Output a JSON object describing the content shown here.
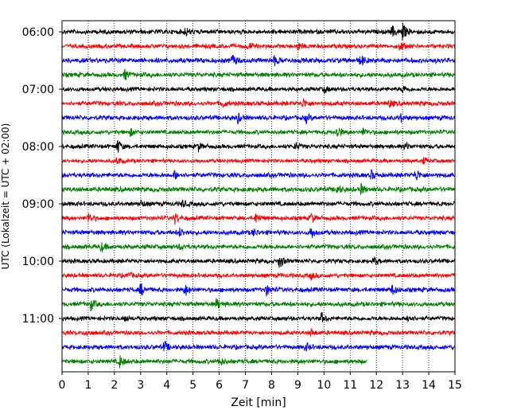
{
  "chart_data": {
    "type": "line",
    "subtype": "helicorder",
    "title": "",
    "xlabel": "Zeit  [min]",
    "ylabel": "UTC (Lokalzeit = UTC + 02:00)",
    "xlim": [
      0,
      15
    ],
    "x_ticks": [
      0,
      1,
      2,
      3,
      4,
      5,
      6,
      7,
      8,
      9,
      10,
      11,
      12,
      13,
      14,
      15
    ],
    "x_tick_labels": [
      "0",
      "1",
      "2",
      "3",
      "4",
      "5",
      "6",
      "7",
      "8",
      "9",
      "10",
      "11",
      "12",
      "13",
      "14",
      "15"
    ],
    "y_tick_labels": [
      {
        "label": "06:00",
        "row": 0
      },
      {
        "label": "07:00",
        "row": 4
      },
      {
        "label": "08:00",
        "row": 8
      },
      {
        "label": "09:00",
        "row": 12
      },
      {
        "label": "10:00",
        "row": 16
      },
      {
        "label": "11:00",
        "row": 20
      }
    ],
    "x_grid": true,
    "grid_style": "dotted",
    "line_minutes": 15,
    "color_cycle": [
      "#000000",
      "#ff0000",
      "#0000ff",
      "#008000"
    ],
    "rows": [
      {
        "start": "06:00",
        "color": "#000000",
        "end_minute": 15,
        "amplitude": 0.3,
        "events": [
          {
            "t": 4.7,
            "a": 0.6
          },
          {
            "t": 12.6,
            "a": 0.8
          },
          {
            "t": 13.0,
            "a": 1.2
          }
        ]
      },
      {
        "start": "06:15",
        "color": "#ff0000",
        "end_minute": 15,
        "amplitude": 0.28,
        "events": [
          {
            "t": 7.1,
            "a": 0.5
          },
          {
            "t": 9.0,
            "a": 0.6
          },
          {
            "t": 12.9,
            "a": 0.7
          }
        ]
      },
      {
        "start": "06:30",
        "color": "#0000ff",
        "end_minute": 15,
        "amplitude": 0.32,
        "events": [
          {
            "t": 6.5,
            "a": 0.8
          },
          {
            "t": 8.1,
            "a": 0.6
          },
          {
            "t": 11.4,
            "a": 0.8
          }
        ]
      },
      {
        "start": "06:45",
        "color": "#008000",
        "end_minute": 15,
        "amplitude": 0.3,
        "events": [
          {
            "t": 2.4,
            "a": 0.7
          }
        ]
      },
      {
        "start": "07:00",
        "color": "#000000",
        "end_minute": 15,
        "amplitude": 0.28,
        "events": [
          {
            "t": 10.0,
            "a": 0.5
          },
          {
            "t": 13.0,
            "a": 0.5
          }
        ]
      },
      {
        "start": "07:15",
        "color": "#ff0000",
        "end_minute": 15,
        "amplitude": 0.3,
        "events": [
          {
            "t": 6.1,
            "a": 0.6
          },
          {
            "t": 9.2,
            "a": 0.6
          },
          {
            "t": 12.5,
            "a": 0.5
          }
        ]
      },
      {
        "start": "07:30",
        "color": "#0000ff",
        "end_minute": 15,
        "amplitude": 0.3,
        "events": [
          {
            "t": 6.7,
            "a": 0.7
          },
          {
            "t": 9.3,
            "a": 0.6
          },
          {
            "t": 12.9,
            "a": 0.6
          }
        ]
      },
      {
        "start": "07:45",
        "color": "#008000",
        "end_minute": 15,
        "amplitude": 0.28,
        "events": [
          {
            "t": 2.6,
            "a": 0.5
          },
          {
            "t": 10.5,
            "a": 1.0
          },
          {
            "t": 11.5,
            "a": 0.5
          }
        ]
      },
      {
        "start": "08:00",
        "color": "#000000",
        "end_minute": 15,
        "amplitude": 0.28,
        "events": [
          {
            "t": 2.1,
            "a": 1.0
          },
          {
            "t": 5.2,
            "a": 0.6
          },
          {
            "t": 8.9,
            "a": 0.6
          },
          {
            "t": 13.1,
            "a": 0.5
          }
        ]
      },
      {
        "start": "08:15",
        "color": "#ff0000",
        "end_minute": 15,
        "amplitude": 0.25,
        "events": [
          {
            "t": 2.1,
            "a": 0.5
          },
          {
            "t": 13.8,
            "a": 0.4
          }
        ]
      },
      {
        "start": "08:30",
        "color": "#0000ff",
        "end_minute": 15,
        "amplitude": 0.3,
        "events": [
          {
            "t": 4.3,
            "a": 0.6
          },
          {
            "t": 11.8,
            "a": 0.6
          },
          {
            "t": 13.5,
            "a": 0.9
          }
        ]
      },
      {
        "start": "08:45",
        "color": "#008000",
        "end_minute": 15,
        "amplitude": 0.32,
        "events": [
          {
            "t": 10.5,
            "a": 0.6
          },
          {
            "t": 11.4,
            "a": 0.7
          }
        ]
      },
      {
        "start": "09:00",
        "color": "#000000",
        "end_minute": 15,
        "amplitude": 0.3,
        "events": [
          {
            "t": 3.0,
            "a": 0.5
          },
          {
            "t": 4.6,
            "a": 0.5
          },
          {
            "t": 15.0,
            "a": 0.7
          }
        ]
      },
      {
        "start": "09:15",
        "color": "#ff0000",
        "end_minute": 15,
        "amplitude": 0.28,
        "events": [
          {
            "t": 1.0,
            "a": 0.8
          },
          {
            "t": 4.3,
            "a": 0.8
          },
          {
            "t": 7.4,
            "a": 0.7
          },
          {
            "t": 9.5,
            "a": 0.7
          }
        ]
      },
      {
        "start": "09:30",
        "color": "#0000ff",
        "end_minute": 15,
        "amplitude": 0.3,
        "events": [
          {
            "t": 4.5,
            "a": 0.6
          },
          {
            "t": 7.3,
            "a": 0.5
          },
          {
            "t": 9.5,
            "a": 0.9
          }
        ]
      },
      {
        "start": "09:45",
        "color": "#008000",
        "end_minute": 15,
        "amplitude": 0.3,
        "events": [
          {
            "t": 1.5,
            "a": 0.6
          },
          {
            "t": 4.5,
            "a": 0.4
          }
        ]
      },
      {
        "start": "10:00",
        "color": "#000000",
        "end_minute": 15,
        "amplitude": 0.28,
        "events": [
          {
            "t": 8.3,
            "a": 1.0
          },
          {
            "t": 11.9,
            "a": 0.6
          }
        ]
      },
      {
        "start": "10:15",
        "color": "#ff0000",
        "end_minute": 15,
        "amplitude": 0.28,
        "events": [
          {
            "t": 2.5,
            "a": 0.4
          },
          {
            "t": 9.5,
            "a": 0.5
          }
        ]
      },
      {
        "start": "10:30",
        "color": "#0000ff",
        "end_minute": 15,
        "amplitude": 0.3,
        "events": [
          {
            "t": 3.0,
            "a": 0.9
          },
          {
            "t": 4.7,
            "a": 0.8
          },
          {
            "t": 7.8,
            "a": 0.7
          },
          {
            "t": 12.6,
            "a": 0.7
          }
        ]
      },
      {
        "start": "10:45",
        "color": "#008000",
        "end_minute": 15,
        "amplitude": 0.3,
        "events": [
          {
            "t": 1.1,
            "a": 0.8
          },
          {
            "t": 5.9,
            "a": 0.7
          }
        ]
      },
      {
        "start": "11:00",
        "color": "#000000",
        "end_minute": 15,
        "amplitude": 0.28,
        "events": [
          {
            "t": 2.4,
            "a": 0.5
          },
          {
            "t": 9.9,
            "a": 0.7
          },
          {
            "t": 13.2,
            "a": 0.7
          }
        ]
      },
      {
        "start": "11:15",
        "color": "#ff0000",
        "end_minute": 15,
        "amplitude": 0.28,
        "events": [
          {
            "t": 0.9,
            "a": 0.5
          },
          {
            "t": 9.5,
            "a": 0.5
          }
        ]
      },
      {
        "start": "11:30",
        "color": "#0000ff",
        "end_minute": 15,
        "amplitude": 0.3,
        "events": [
          {
            "t": 3.9,
            "a": 0.8
          },
          {
            "t": 9.3,
            "a": 0.6
          }
        ]
      },
      {
        "start": "11:45",
        "color": "#008000",
        "end_minute": 11.65,
        "amplitude": 0.3,
        "events": [
          {
            "t": 2.2,
            "a": 0.8
          },
          {
            "t": 6.0,
            "a": 0.6
          }
        ]
      }
    ]
  }
}
